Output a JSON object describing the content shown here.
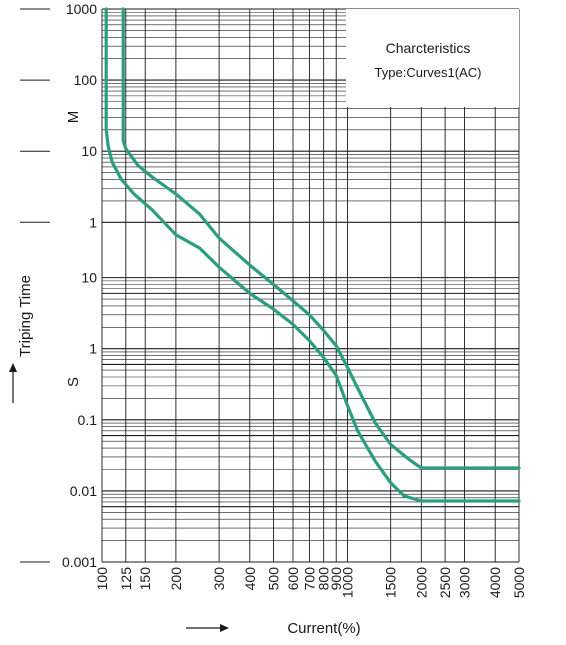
{
  "chart_data": {
    "type": "line",
    "title": "Charcteristics",
    "subtitle": "Type:Curves1(AC)",
    "xlabel": "Current(%)",
    "ylabel": "Triping Time",
    "x_scale": "log",
    "y_scale": "log",
    "xlim": [
      100,
      5000
    ],
    "x_ticks": [
      "100",
      "125",
      "150",
      "200",
      "300",
      "400",
      "500",
      "600",
      "700",
      "800",
      "900",
      "1000",
      "1500",
      "2000",
      "2500",
      "3000",
      "4000",
      "5000"
    ],
    "y_ticks_minutes": [
      "1000",
      "100",
      "10",
      "1"
    ],
    "y_ticks_seconds": [
      "10",
      "1",
      "0.1",
      "0.01",
      "0.001"
    ],
    "y_unit_minutes": "M",
    "y_unit_seconds": "S",
    "grid": true,
    "legend_position": "top-right",
    "series": [
      {
        "color": "#2a9d82",
        "points": [
          [
            104,
            60000
          ],
          [
            104,
            1200
          ],
          [
            106,
            700
          ],
          [
            110,
            420
          ],
          [
            120,
            240
          ],
          [
            135,
            150
          ],
          [
            160,
            90
          ],
          [
            200,
            40
          ],
          [
            250,
            26
          ],
          [
            300,
            14
          ],
          [
            400,
            6
          ],
          [
            500,
            3.6
          ],
          [
            600,
            2.2
          ],
          [
            700,
            1.3
          ],
          [
            800,
            0.75
          ],
          [
            900,
            0.42
          ],
          [
            1000,
            0.16
          ],
          [
            1100,
            0.07
          ],
          [
            1300,
            0.026
          ],
          [
            1500,
            0.013
          ],
          [
            1700,
            0.0085
          ],
          [
            2000,
            0.0072
          ],
          [
            5000,
            0.0072
          ]
        ]
      },
      {
        "color": "#2a9d82",
        "points": [
          [
            122,
            60000
          ],
          [
            122,
            840
          ],
          [
            125,
            650
          ],
          [
            140,
            380
          ],
          [
            160,
            260
          ],
          [
            200,
            150
          ],
          [
            250,
            78
          ],
          [
            300,
            36
          ],
          [
            400,
            15
          ],
          [
            500,
            8
          ],
          [
            600,
            4.7
          ],
          [
            700,
            3
          ],
          [
            800,
            1.8
          ],
          [
            900,
            1.1
          ],
          [
            1000,
            0.55
          ],
          [
            1100,
            0.28
          ],
          [
            1300,
            0.09
          ],
          [
            1500,
            0.045
          ],
          [
            1800,
            0.027
          ],
          [
            2000,
            0.021
          ],
          [
            5000,
            0.021
          ]
        ]
      }
    ]
  },
  "colors": {
    "curve": "#2a9d82",
    "grid": "#1a1a1a",
    "ink": "#1a1a1a"
  }
}
